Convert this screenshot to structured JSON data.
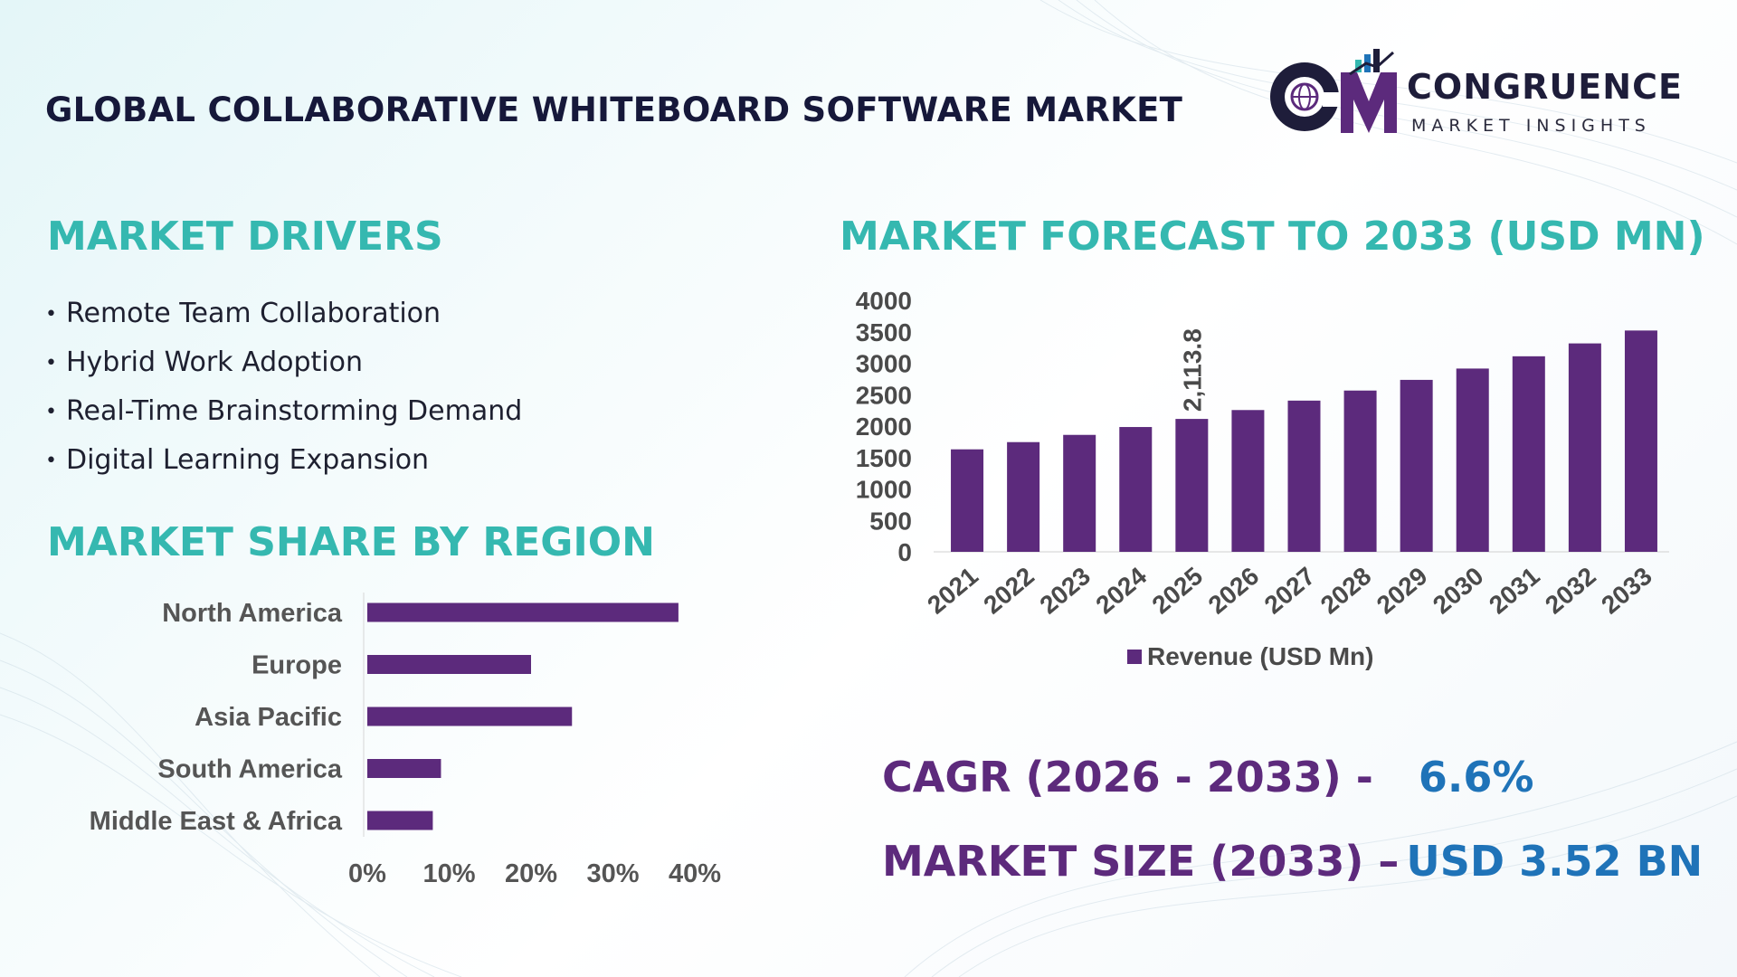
{
  "header": {
    "title": "GLOBAL COLLABORATIVE WHITEBOARD SOFTWARE MARKET",
    "logo_name": "CONGRUENCE",
    "logo_tagline": "MARKET INSIGHTS",
    "logo_monogram": "CM"
  },
  "drivers": {
    "title": "MARKET DRIVERS",
    "items": [
      "Remote Team Collaboration",
      "Hybrid Work Adoption",
      "Real-Time Brainstorming Demand",
      "Digital Learning Expansion"
    ]
  },
  "region": {
    "title": "MARKET SHARE BY REGION"
  },
  "forecast": {
    "title": "MARKET FORECAST TO 2033 (USD MN)"
  },
  "kpis": {
    "cagr_label": "CAGR (2026 - 2033) -",
    "cagr_value": "6.6%",
    "size_label": "MARKET SIZE (2033) –",
    "size_value": "USD 3.52 BN"
  },
  "colors": {
    "bar": "#5c2a7c",
    "heading": "#35b8b0",
    "kpi_label": "#5d2a7c",
    "kpi_value": "#1f73b8",
    "title": "#16183a"
  },
  "chart_data": [
    {
      "type": "bar",
      "orientation": "vertical",
      "title": "",
      "xlabel": "",
      "ylabel": "",
      "categories": [
        "2021",
        "2022",
        "2023",
        "2024",
        "2025",
        "2026",
        "2027",
        "2028",
        "2029",
        "2030",
        "2031",
        "2032",
        "2033"
      ],
      "series": [
        {
          "name": "Revenue (USD Mn)",
          "values": [
            1630,
            1745,
            1860,
            1985,
            2113.8,
            2255,
            2405,
            2565,
            2735,
            2915,
            3110,
            3315,
            3520
          ]
        }
      ],
      "annotations": [
        {
          "category": "2025",
          "text": "2,113.8"
        }
      ],
      "ylim": [
        0,
        4000
      ],
      "yticks": [
        0,
        500,
        1000,
        1500,
        2000,
        2500,
        3000,
        3500,
        4000
      ],
      "legend": "bottom",
      "grid": false
    },
    {
      "type": "bar",
      "orientation": "horizontal",
      "title": "",
      "categories": [
        "North America",
        "Europe",
        "Asia Pacific",
        "South America",
        "Middle East & Africa"
      ],
      "values": [
        38,
        20,
        25,
        9,
        8
      ],
      "xlim": [
        0,
        40
      ],
      "xticks": [
        "0%",
        "10%",
        "20%",
        "30%",
        "40%"
      ],
      "grid": false
    }
  ]
}
